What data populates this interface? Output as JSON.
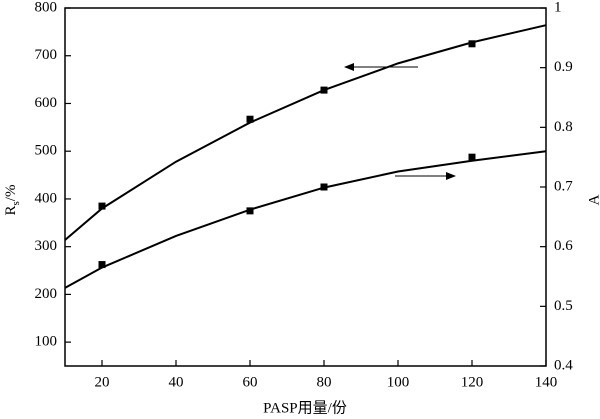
{
  "chart_data": {
    "type": "line",
    "xlabel": "PASP用量/份",
    "ylabel": {
      "text": "R",
      "subscript": "s",
      "suffix": "/%"
    },
    "y2label": "A",
    "xlim": [
      10,
      140
    ],
    "xticks": [
      20,
      40,
      60,
      80,
      100,
      120,
      140
    ],
    "ylim": [
      50,
      800
    ],
    "yticks": [
      100,
      200,
      300,
      400,
      500,
      600,
      700,
      800
    ],
    "y2lim": [
      0.4,
      1.0
    ],
    "y2ticks": [
      0.4,
      0.5,
      0.6,
      0.7,
      0.8,
      0.9,
      1.0
    ],
    "color": "#000000",
    "series": [
      {
        "axis": "y",
        "style": "markers",
        "x": [
          20,
          60,
          80,
          120
        ],
        "values": [
          385,
          567,
          628,
          725
        ]
      },
      {
        "axis": "y",
        "style": "line",
        "x": [
          10,
          20,
          40,
          60,
          80,
          100,
          120,
          140
        ],
        "values": [
          314,
          380,
          478,
          560,
          628,
          684,
          728,
          764
        ]
      },
      {
        "axis": "y2",
        "style": "markers",
        "x": [
          20,
          60,
          80,
          120
        ],
        "values": [
          0.57,
          0.66,
          0.7,
          0.75
        ]
      },
      {
        "axis": "y2",
        "style": "line",
        "x": [
          10,
          20,
          40,
          60,
          80,
          100,
          120,
          140
        ],
        "values": [
          0.531,
          0.565,
          0.618,
          0.662,
          0.699,
          0.726,
          0.744,
          0.76
        ]
      }
    ]
  }
}
